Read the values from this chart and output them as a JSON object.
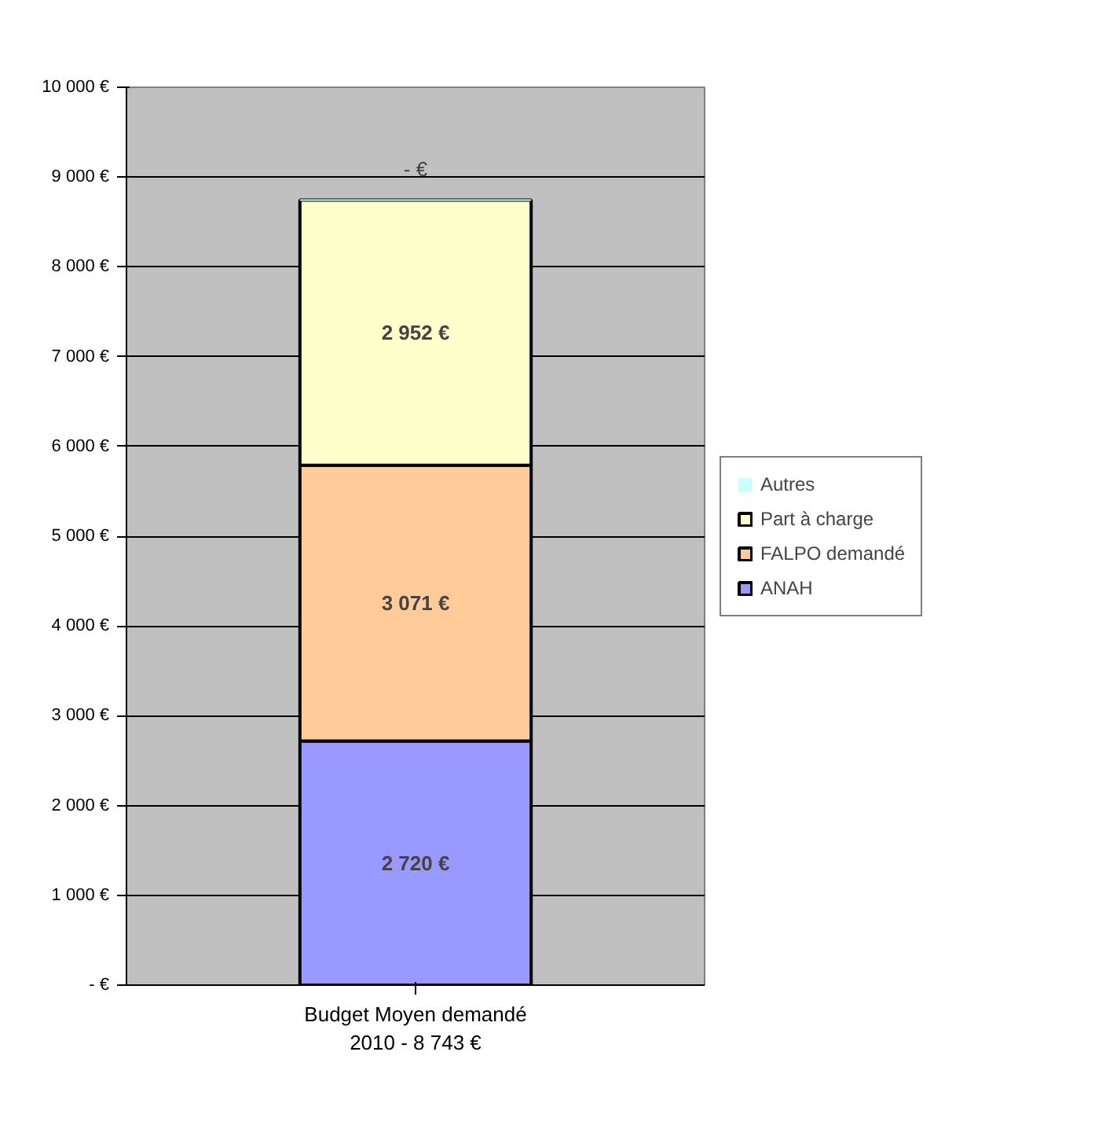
{
  "chart_data": {
    "type": "bar",
    "stacked": true,
    "categories": [
      "Budget Moyen demandé\n2010 - 8 743 €"
    ],
    "series": [
      {
        "name": "ANAH",
        "color": "#9999ff",
        "values": [
          2720
        ],
        "value_labels": [
          "2 720 €"
        ]
      },
      {
        "name": "FALPO demandé",
        "color": "#ffcc99",
        "values": [
          3071
        ],
        "value_labels": [
          "3 071 €"
        ]
      },
      {
        "name": "Part à charge",
        "color": "#ffffcc",
        "values": [
          2952
        ],
        "value_labels": [
          "2 952 €"
        ]
      },
      {
        "name": "Autres",
        "color": "#ccffff",
        "values": [
          0
        ],
        "value_labels": [
          "- €"
        ]
      }
    ],
    "ylim": [
      0,
      10000
    ],
    "yticks": [
      {
        "value": 0,
        "label": "- €"
      },
      {
        "value": 1000,
        "label": "1 000 €"
      },
      {
        "value": 2000,
        "label": "2 000 €"
      },
      {
        "value": 3000,
        "label": "3 000 €"
      },
      {
        "value": 4000,
        "label": "4 000 €"
      },
      {
        "value": 5000,
        "label": "5 000 €"
      },
      {
        "value": 6000,
        "label": "6 000 €"
      },
      {
        "value": 7000,
        "label": "7 000 €"
      },
      {
        "value": 8000,
        "label": "8 000 €"
      },
      {
        "value": 9000,
        "label": "9 000 €"
      },
      {
        "value": 10000,
        "label": "10 000 €"
      }
    ],
    "grid": "y",
    "legend": "right"
  }
}
